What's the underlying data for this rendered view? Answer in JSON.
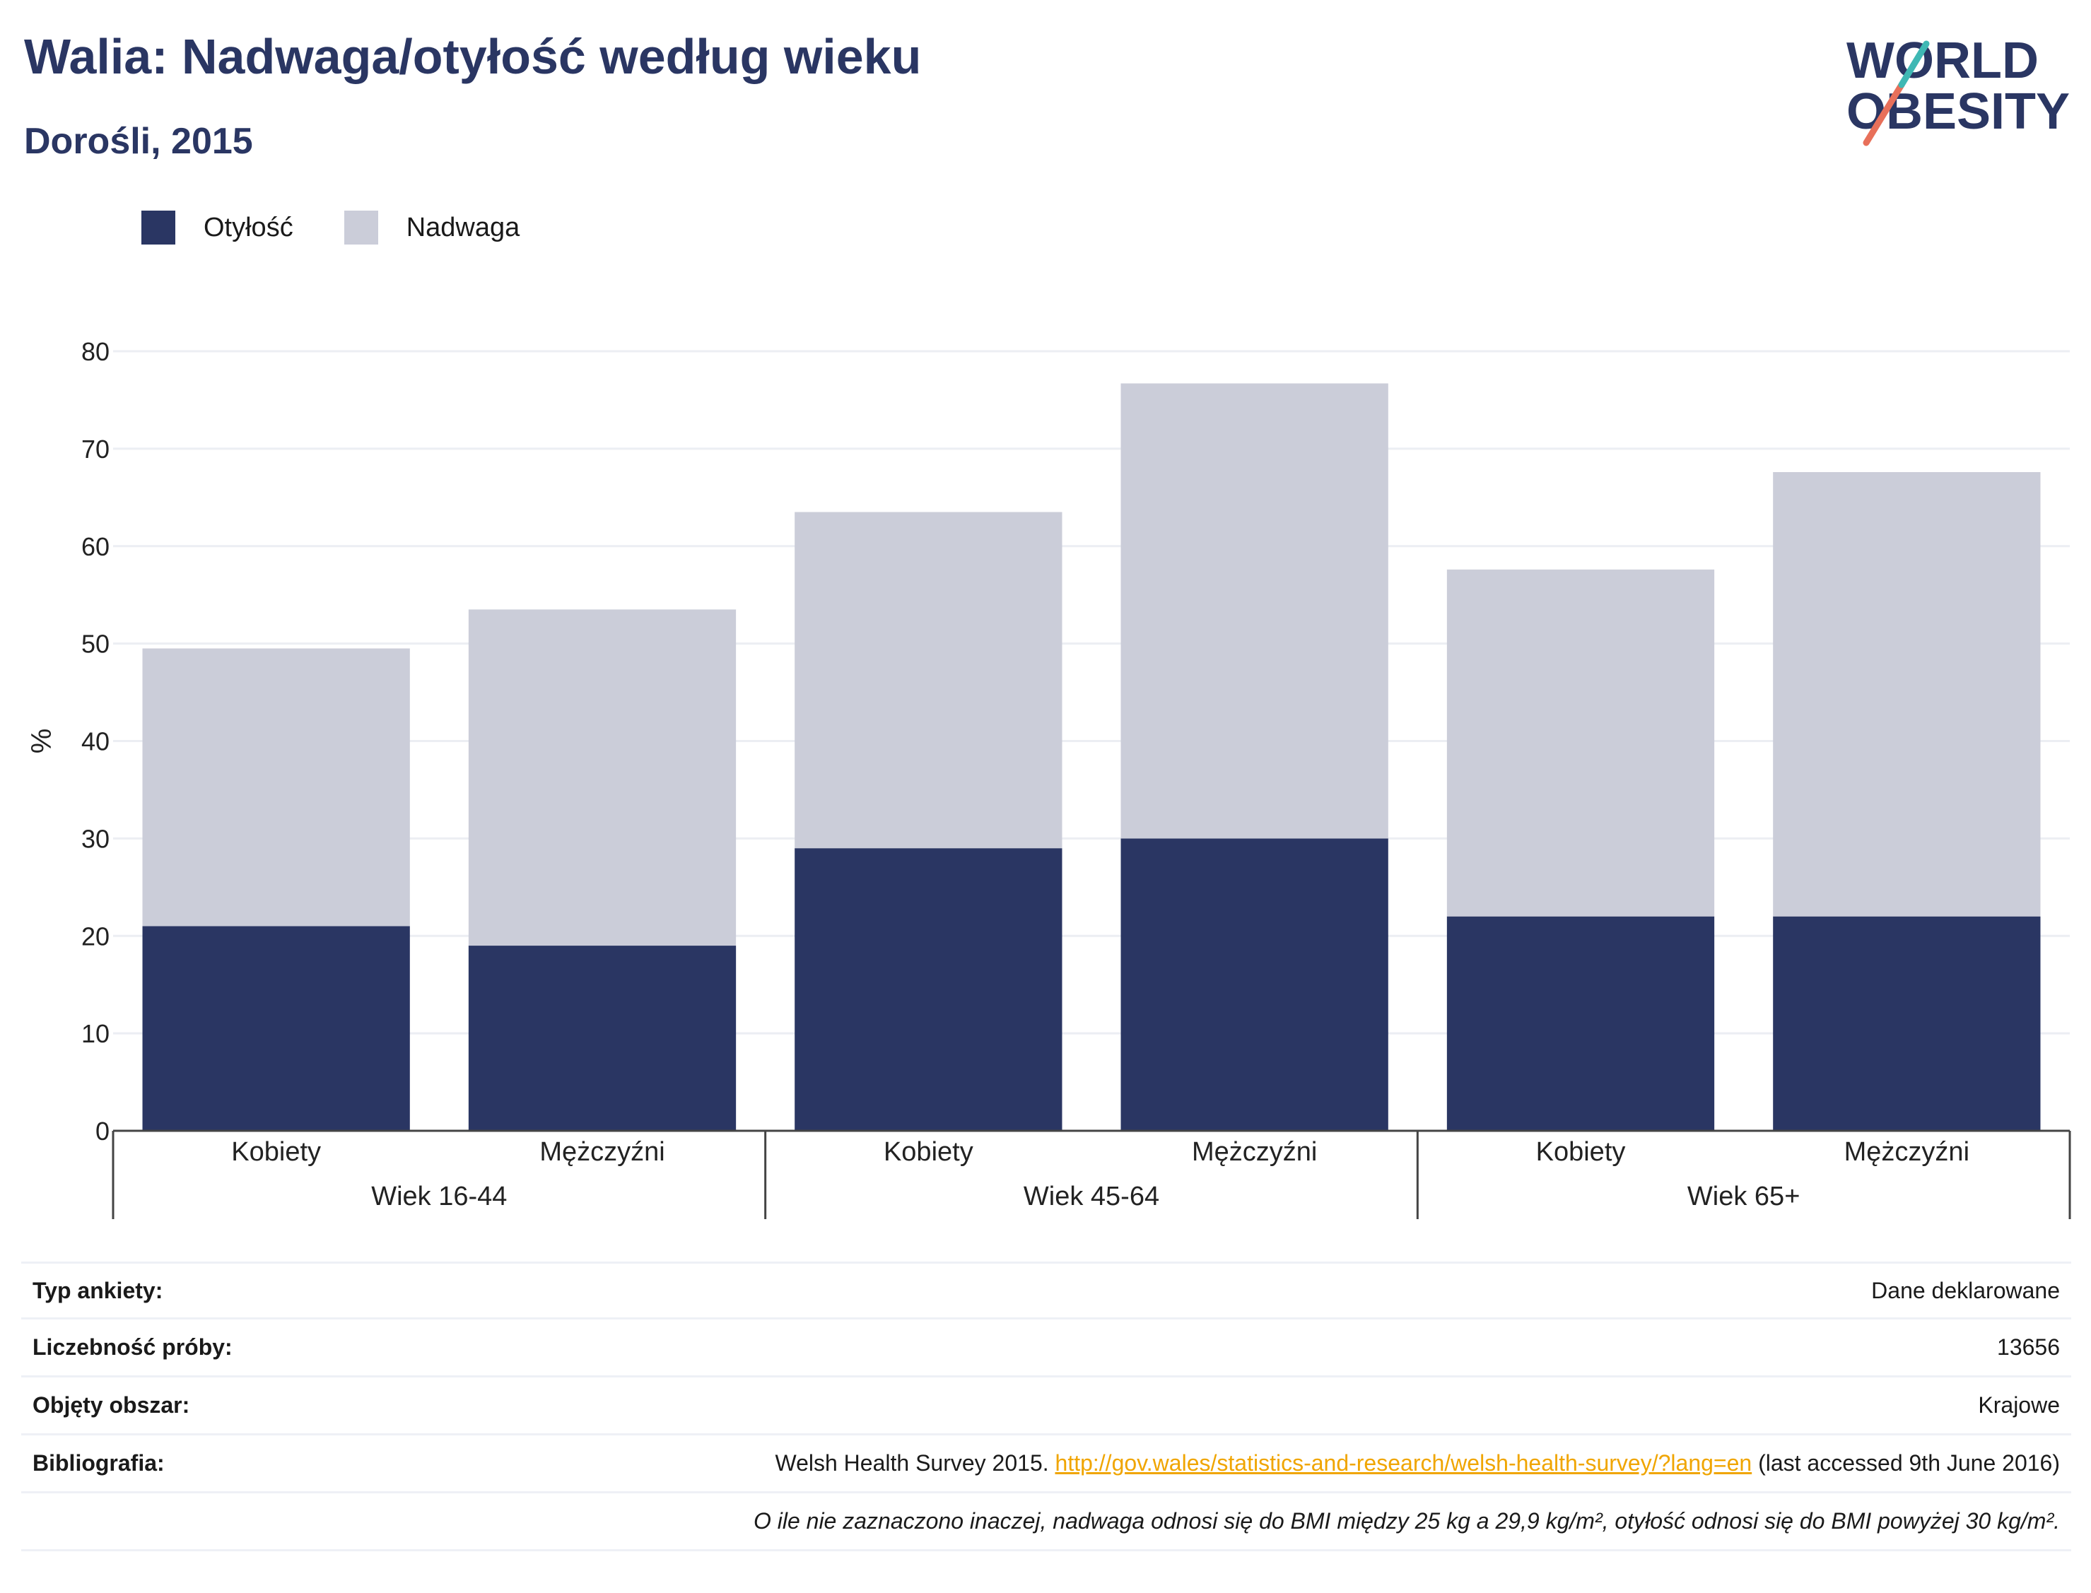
{
  "title": "Walia: Nadwaga/otyłość według wieku",
  "subtitle": "Dorośli, 2015",
  "logo": {
    "line1": "WORLD",
    "line2": "OBESITY"
  },
  "colors": {
    "obesity": "#2a3663",
    "overweight": "#cbcdd9",
    "title": "#2a3663",
    "link": "#f0a500"
  },
  "legend": [
    {
      "label": "Otyłość",
      "color": "#2a3663"
    },
    {
      "label": "Nadwaga",
      "color": "#cbcdd9"
    }
  ],
  "chart_data": {
    "type": "bar",
    "stacked": true,
    "ylabel": "%",
    "ylim": [
      0,
      80
    ],
    "yticks": [
      0,
      10,
      20,
      30,
      40,
      50,
      60,
      70,
      80
    ],
    "grid": true,
    "legend_position": "top-left",
    "groups": [
      "Wiek 16-44",
      "Wiek 45-64",
      "Wiek 65+"
    ],
    "categories": [
      "Kobiety",
      "Mężczyźni",
      "Kobiety",
      "Mężczyźni",
      "Kobiety",
      "Mężczyźni"
    ],
    "series": [
      {
        "name": "Otyłość",
        "values": [
          21,
          19,
          29,
          30,
          22,
          22
        ]
      },
      {
        "name": "Nadwaga",
        "values": [
          28.5,
          34.5,
          34.5,
          46.7,
          35.6,
          45.6
        ]
      }
    ]
  },
  "info": {
    "survey_type_label": "Typ ankiety:",
    "survey_type_value": "Dane deklarowane",
    "sample_label": "Liczebność próby:",
    "sample_value": "13656",
    "area_label": "Objęty obszar:",
    "area_value": "Krajowe",
    "bib_label": "Bibliografia:",
    "bib_text": "Welsh Health Survey 2015.",
    "bib_link": "http://gov.wales/statistics-and-research/welsh-health-survey/?lang=en",
    "bib_suffix": "(last accessed 9th June 2016)",
    "note": "O ile nie zaznaczono inaczej, nadwaga odnosi się do BMI między 25 kg a 29,9 kg/m², otyłość odnosi się do BMI powyżej 30 kg/m²."
  }
}
